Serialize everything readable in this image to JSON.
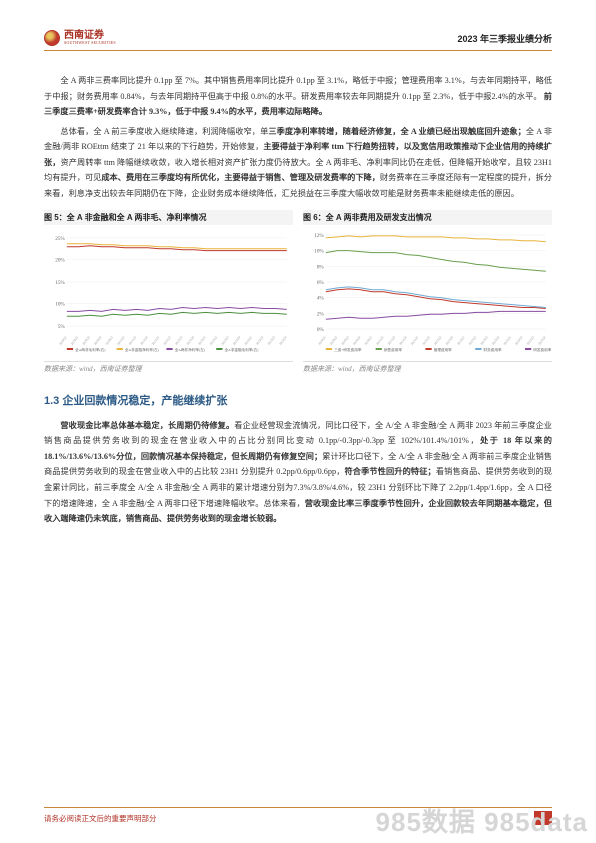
{
  "header": {
    "logo_cn": "西南证券",
    "logo_en": "SOUTHWEST SECURITIES",
    "title": "2023 年三季报业绩分析"
  },
  "para1": "全 A 两非三费率同比提升 0.1pp 至 7%。其中销售费用率同比提升 0.1pp 至 3.1%，略低于中报；管理费用率 3.1%，与去年同期持平，略低于中报；财务费用率 0.84%，与去年同期持平但高于中报 0.8%的水平。研发费用率较去年同期提升 0.1pp 至 2.3%，低于中报2.4%的水平。",
  "para1_bold": "前三季度三费率+研发费率合计 9.3%，低于中报 9.4%的水平，费用率边际略降。",
  "para2_a": "总体看，全 A 前三季度收入继续降速，利润降幅收窄，单",
  "para2_b": "三季度净利率转增，随着经济修复，全 A 业绩已经出现触底回升迹象；",
  "para2_c": "全 A 非金融/两非 ROEttm 结束了 21 年以来的下行趋势，开始修复，",
  "para2_d": "主要得益于净利率 ttm 下行趋势扭转，以及宽信用政策推动下企业信用的持续扩张，",
  "para2_e": "资产周转率 ttm 降幅继续收敛，收入增长相对资产扩张力度仍待放大。全 A 两非毛、净利率同比仍在走低，但降幅开始收窄，且较 23H1 均有提升，可见",
  "para2_f": "成本、费用在三季度均有所优化，主要得益于销售、管理及研发费率的下降，",
  "para2_g": "财务费率在三季度还际有一定程度的提升，拆分来看，利息净支出较去年同期仍在下降，企业财务成本继续降低，汇兑损益在三季度大幅收敛可能是财务费率未能继续走低的原因。",
  "chart5": {
    "title": "图 5：全 A 非金融和全 A 两非毛、净利率情况",
    "source": "数据来源：wind，西南证券整理",
    "yticks": [
      "25%",
      "20%",
      "15%",
      "10%",
      "5%"
    ],
    "ytick_positions": [
      0.05,
      0.27,
      0.5,
      0.72,
      0.95
    ],
    "series": [
      {
        "color": "#c0392b",
        "points": [
          0.14,
          0.14,
          0.13,
          0.14,
          0.14,
          0.15,
          0.15,
          0.15,
          0.16,
          0.16,
          0.17,
          0.17,
          0.18,
          0.18,
          0.18,
          0.18,
          0.18,
          0.18,
          0.18,
          0.18
        ]
      },
      {
        "color": "#e8b33a",
        "points": [
          0.11,
          0.11,
          0.11,
          0.12,
          0.12,
          0.13,
          0.13,
          0.13,
          0.14,
          0.14,
          0.15,
          0.15,
          0.16,
          0.16,
          0.16,
          0.16,
          0.16,
          0.16,
          0.16,
          0.16
        ]
      },
      {
        "color": "#874ba0",
        "points": [
          0.8,
          0.8,
          0.79,
          0.8,
          0.78,
          0.79,
          0.78,
          0.79,
          0.77,
          0.78,
          0.76,
          0.77,
          0.76,
          0.77,
          0.76,
          0.77,
          0.76,
          0.77,
          0.77,
          0.78
        ]
      },
      {
        "color": "#4a8f3e",
        "points": [
          0.85,
          0.85,
          0.84,
          0.85,
          0.83,
          0.84,
          0.83,
          0.84,
          0.82,
          0.83,
          0.81,
          0.82,
          0.81,
          0.82,
          0.81,
          0.82,
          0.81,
          0.82,
          0.82,
          0.83
        ]
      }
    ],
    "legend": [
      "全A两非毛利率(右)",
      "全A非金融净利率(左)",
      "全A两非净利率(左)",
      "全A非金融毛利率(右)"
    ],
    "legend_colors": [
      "#c0392b",
      "#e8b33a",
      "#874ba0",
      "#4a8f3e"
    ]
  },
  "chart6": {
    "title": "图 6：全 A 两非费用及研发支出情况",
    "source": "数据来源：wind，西南证券整理",
    "yticks": [
      "12%",
      "10%",
      "8%",
      "6%",
      "4%",
      "2%",
      "0%"
    ],
    "ytick_positions": [
      0.02,
      0.18,
      0.34,
      0.5,
      0.66,
      0.82,
      0.98
    ],
    "series": [
      {
        "color": "#e8b33a",
        "points": [
          0.05,
          0.04,
          0.03,
          0.04,
          0.03,
          0.03,
          0.03,
          0.04,
          0.04,
          0.04,
          0.04,
          0.05,
          0.05,
          0.06,
          0.06,
          0.07,
          0.07,
          0.08,
          0.08,
          0.09
        ]
      },
      {
        "color": "#6a9e4e",
        "points": [
          0.2,
          0.18,
          0.18,
          0.19,
          0.2,
          0.2,
          0.2,
          0.22,
          0.23,
          0.25,
          0.27,
          0.29,
          0.3,
          0.32,
          0.33,
          0.35,
          0.36,
          0.37,
          0.38,
          0.39
        ]
      },
      {
        "color": "#c0392b",
        "points": [
          0.6,
          0.58,
          0.57,
          0.58,
          0.6,
          0.6,
          0.62,
          0.63,
          0.65,
          0.67,
          0.68,
          0.7,
          0.71,
          0.72,
          0.73,
          0.74,
          0.75,
          0.76,
          0.76,
          0.77
        ]
      },
      {
        "color": "#6fa8d4",
        "points": [
          0.58,
          0.56,
          0.55,
          0.56,
          0.58,
          0.58,
          0.6,
          0.61,
          0.63,
          0.65,
          0.66,
          0.68,
          0.69,
          0.7,
          0.71,
          0.72,
          0.73,
          0.74,
          0.75,
          0.76
        ]
      },
      {
        "color": "#874ba0",
        "points": [
          0.88,
          0.87,
          0.86,
          0.87,
          0.87,
          0.86,
          0.85,
          0.85,
          0.84,
          0.83,
          0.83,
          0.82,
          0.82,
          0.81,
          0.81,
          0.8,
          0.8,
          0.8,
          0.8,
          0.8
        ]
      }
    ],
    "legend": [
      "三费+研发费用率",
      "销售费用率",
      "管理费用率",
      "财务费用率",
      "研发费用率"
    ],
    "legend_colors": [
      "#e8b33a",
      "#6a9e4e",
      "#c0392b",
      "#6fa8d4",
      "#874ba0"
    ]
  },
  "section_heading": "1.3 企业回款情况稳定，产能继续扩张",
  "para3_a": "营收现金比率总体基本稳定，长周期仍待修复。",
  "para3_b": "看企业经营现金流情况，同比口径下，全 A/全 A 非金融/全 A 两非 2023 年前三季度企业销售商品提供劳务收到的现金在营业收入中的占比分别同比变动 0.1pp/-0.3pp/-0.3pp 至 102%/101.4%/101%，",
  "para3_c": "处于 18 年以来的18.1%/13.6%/13.6%分位，回款情况基本保持稳定，但长周期仍有修复空间；",
  "para3_d": "累计环比口径下，全 A/全 A 非金融/全 A 两非前三季度企业销售商品提供劳务收到的现金在营业收入中的占比较 23H1 分别提升 0.2pp/0.6pp/0.6pp，",
  "para3_e": "符合季节性回升的特征；",
  "para3_f": "看销售商品、提供劳务收到的现金累计同比，前三季度全 A/全 A 非金融/全 A 两非的累计增速分别为7.3%/3.8%/4.6%，较 23H1 分别环比下降了 2.2pp/1.4pp/1.6pp，全 A 口径下的增速降速，全 A 非金融/全 A 两非口径下增速降幅收窄。总体来看，",
  "para3_g": "营收现金比率三季度季节性回升，企业回款较去年同期基本稳定，但收入端降速仍未筑底，销售商品、提供劳务收到的现金增长较弱。",
  "footer": {
    "text": "请务必阅读正文后的重要声明部分",
    "page": "3"
  },
  "watermark": "985数据 985data"
}
